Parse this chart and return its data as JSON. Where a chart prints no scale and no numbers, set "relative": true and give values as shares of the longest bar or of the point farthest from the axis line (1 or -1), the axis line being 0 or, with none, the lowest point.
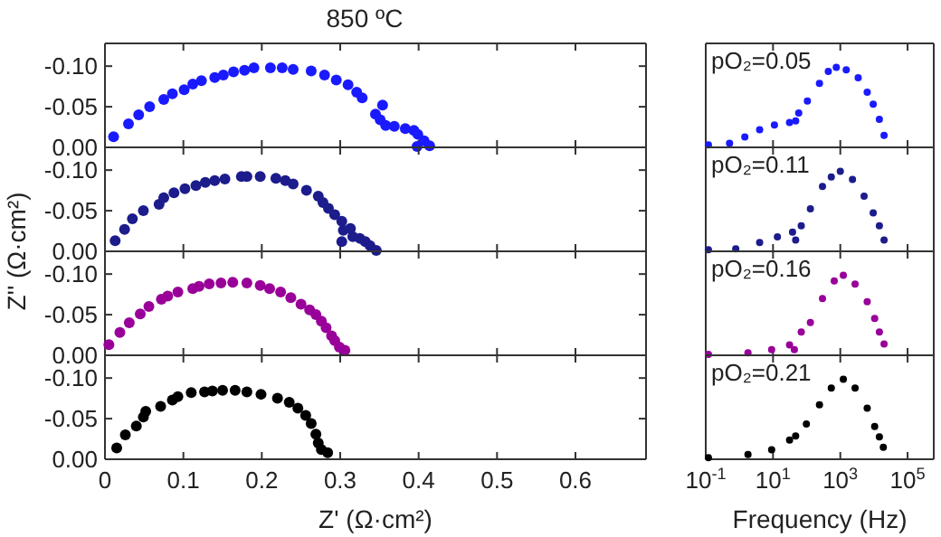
{
  "chart_data": [
    {
      "type": "scatter",
      "title": "850 ºC",
      "marker": "circle",
      "color": "#1a1aff",
      "xlim": [
        0,
        0.69
      ],
      "ylim": [
        0,
        -0.128
      ],
      "xticks": [
        0,
        0.1,
        0.2,
        0.3,
        0.4,
        0.5,
        0.6
      ],
      "yticks": [
        {
          "value": 0,
          "label": "0.00"
        },
        {
          "value": -0.05,
          "label": "-0.05"
        },
        {
          "value": -0.1,
          "label": "-0.10"
        }
      ],
      "tick_labels": "y",
      "x": [
        0.011,
        0.03,
        0.043,
        0.057,
        0.075,
        0.086,
        0.101,
        0.112,
        0.123,
        0.14,
        0.151,
        0.164,
        0.178,
        0.19,
        0.211,
        0.226,
        0.24,
        0.263,
        0.28,
        0.295,
        0.31,
        0.321,
        0.328,
        0.345,
        0.354,
        0.351,
        0.358,
        0.369,
        0.383,
        0.394,
        0.399,
        0.407,
        0.414,
        0.398
      ],
      "values": [
        -0.013,
        -0.029,
        -0.04,
        -0.05,
        -0.059,
        -0.066,
        -0.071,
        -0.078,
        -0.082,
        -0.086,
        -0.089,
        -0.093,
        -0.095,
        -0.098,
        -0.098,
        -0.098,
        -0.096,
        -0.094,
        -0.089,
        -0.083,
        -0.077,
        -0.068,
        -0.061,
        -0.041,
        -0.052,
        -0.034,
        -0.027,
        -0.026,
        -0.023,
        -0.021,
        -0.016,
        -0.008,
        -0.002,
        -0.001
      ]
    },
    {
      "type": "scatter",
      "marker": "circle",
      "color": "#1c1c8c",
      "xlim": [
        0,
        0.69
      ],
      "ylim": [
        0,
        -0.128
      ],
      "xticks": [
        0,
        0.1,
        0.2,
        0.3,
        0.4,
        0.5,
        0.6
      ],
      "yticks": [
        {
          "value": 0,
          "label": "0.00"
        },
        {
          "value": -0.05,
          "label": "-0.05"
        },
        {
          "value": -0.1,
          "label": "-0.10"
        }
      ],
      "tick_labels": "y",
      "x": [
        0.013,
        0.025,
        0.035,
        0.049,
        0.069,
        0.075,
        0.088,
        0.102,
        0.116,
        0.128,
        0.14,
        0.153,
        0.174,
        0.181,
        0.198,
        0.218,
        0.23,
        0.24,
        0.257,
        0.272,
        0.278,
        0.285,
        0.293,
        0.302,
        0.304,
        0.313,
        0.316,
        0.325,
        0.332,
        0.338,
        0.346,
        0.302
      ],
      "values": [
        -0.013,
        -0.027,
        -0.04,
        -0.05,
        -0.058,
        -0.066,
        -0.072,
        -0.077,
        -0.081,
        -0.085,
        -0.087,
        -0.089,
        -0.092,
        -0.092,
        -0.092,
        -0.09,
        -0.087,
        -0.083,
        -0.075,
        -0.068,
        -0.06,
        -0.053,
        -0.045,
        -0.037,
        -0.026,
        -0.028,
        -0.018,
        -0.016,
        -0.012,
        -0.007,
        -0.001,
        -0.012
      ]
    },
    {
      "type": "scatter",
      "ylabel": "Z'' (Ω·cm²)",
      "marker": "circle",
      "color": "#990099",
      "xlim": [
        0,
        0.69
      ],
      "ylim": [
        0,
        -0.128
      ],
      "xticks": [
        0,
        0.1,
        0.2,
        0.3,
        0.4,
        0.5,
        0.6
      ],
      "yticks": [
        {
          "value": 0,
          "label": "0.00"
        },
        {
          "value": -0.05,
          "label": "-0.05"
        },
        {
          "value": -0.1,
          "label": "-0.10"
        }
      ],
      "tick_labels": "y",
      "x": [
        0.005,
        0.019,
        0.031,
        0.045,
        0.056,
        0.072,
        0.08,
        0.093,
        0.112,
        0.12,
        0.133,
        0.148,
        0.163,
        0.181,
        0.198,
        0.21,
        0.224,
        0.237,
        0.25,
        0.261,
        0.269,
        0.276,
        0.282,
        0.289,
        0.293,
        0.299,
        0.306
      ],
      "values": [
        -0.013,
        -0.028,
        -0.04,
        -0.051,
        -0.06,
        -0.069,
        -0.073,
        -0.078,
        -0.082,
        -0.085,
        -0.088,
        -0.089,
        -0.09,
        -0.089,
        -0.086,
        -0.082,
        -0.078,
        -0.071,
        -0.063,
        -0.056,
        -0.05,
        -0.042,
        -0.034,
        -0.024,
        -0.018,
        -0.01,
        -0.006
      ]
    },
    {
      "type": "scatter",
      "xlabel": "Z' (Ω·cm²)",
      "marker": "circle",
      "color": "#000000",
      "xlim": [
        0,
        0.69
      ],
      "ylim": [
        0,
        -0.128
      ],
      "xticks": [
        0,
        0.1,
        0.2,
        0.3,
        0.4,
        0.5,
        0.6
      ],
      "yticks": [
        {
          "value": 0,
          "label": "0.00"
        },
        {
          "value": -0.05,
          "label": "-0.05"
        },
        {
          "value": -0.1,
          "label": "-0.10"
        }
      ],
      "x": [
        0.015,
        0.026,
        0.04,
        0.049,
        0.052,
        0.071,
        0.086,
        0.093,
        0.11,
        0.127,
        0.137,
        0.15,
        0.166,
        0.181,
        0.199,
        0.22,
        0.235,
        0.246,
        0.256,
        0.263,
        0.269,
        0.272,
        0.276,
        0.284
      ],
      "values": [
        -0.014,
        -0.03,
        -0.041,
        -0.052,
        -0.059,
        -0.065,
        -0.073,
        -0.077,
        -0.082,
        -0.083,
        -0.084,
        -0.085,
        -0.085,
        -0.083,
        -0.08,
        -0.075,
        -0.07,
        -0.063,
        -0.054,
        -0.044,
        -0.031,
        -0.02,
        -0.012,
        -0.008
      ]
    },
    {
      "type": "scatter",
      "relative": true,
      "annotations": [
        "pO₂=0.05"
      ],
      "marker": "circle",
      "color": "#1a1aff",
      "log": "x",
      "xlim": [
        0.1,
        600000
      ],
      "xticks": [
        0.1,
        10,
        1000,
        100000
      ],
      "tick_labels": false,
      "x": [
        0.12,
        0.51,
        1.45,
        4.0,
        11,
        31,
        47,
        58,
        105,
        240,
        440,
        760,
        1500,
        3400,
        6300,
        9500,
        14500,
        20000
      ],
      "values": [
        0.03,
        0.05,
        0.13,
        0.22,
        0.28,
        0.31,
        0.33,
        0.43,
        0.58,
        0.8,
        0.95,
        1,
        0.97,
        0.87,
        0.69,
        0.54,
        0.35,
        0.15
      ]
    },
    {
      "type": "scatter",
      "relative": true,
      "annotations": [
        "pO₂=0.11"
      ],
      "marker": "circle",
      "color": "#1c1c8c",
      "log": "x",
      "xlim": [
        0.1,
        600000
      ],
      "xticks": [
        0.1,
        10,
        1000,
        100000
      ],
      "tick_labels": false,
      "x": [
        0.12,
        0.78,
        4.0,
        13.5,
        38,
        47,
        69,
        129,
        295,
        540,
        1000,
        2300,
        5100,
        9500,
        14500,
        20000
      ],
      "values": [
        0.02,
        0.03,
        0.11,
        0.18,
        0.24,
        0.14,
        0.32,
        0.53,
        0.81,
        0.93,
        1,
        0.9,
        0.69,
        0.48,
        0.32,
        0.14
      ]
    },
    {
      "type": "scatter",
      "relative": true,
      "annotations": [
        "pO₂=0.16"
      ],
      "marker": "circle",
      "color": "#990099",
      "log": "x",
      "xlim": [
        0.1,
        600000
      ],
      "xticks": [
        0.1,
        10,
        1000,
        100000
      ],
      "tick_labels": false,
      "x": [
        0.12,
        1.8,
        9.1,
        31,
        43,
        69,
        129,
        295,
        660,
        1230,
        2750,
        6300,
        10500,
        14500,
        20000
      ],
      "values": [
        0.01,
        0.03,
        0.07,
        0.13,
        0.07,
        0.29,
        0.41,
        0.71,
        0.93,
        1,
        0.89,
        0.67,
        0.46,
        0.29,
        0.14
      ]
    },
    {
      "type": "scatter",
      "relative": true,
      "annotations": [
        "pO₂=0.21"
      ],
      "xlabel": "Frequency (Hz)",
      "marker": "circle",
      "color": "#000000",
      "log": "x",
      "xlim": [
        0.1,
        600000
      ],
      "xticks": [
        {
          "value": 0.1,
          "label": "10$^{-1}$"
        },
        {
          "value": 10,
          "label": "10$^{1}$"
        },
        {
          "value": 1000,
          "label": "10$^{3}$"
        },
        {
          "value": 100000,
          "label": "10$^{5}$"
        }
      ],
      "tick_labels": "x",
      "x": [
        0.12,
        1.8,
        9.1,
        31,
        47,
        98,
        240,
        540,
        1230,
        2750,
        6300,
        10500,
        14500,
        19000
      ],
      "values": [
        0.02,
        0.06,
        0.12,
        0.24,
        0.29,
        0.44,
        0.68,
        0.89,
        1,
        0.89,
        0.64,
        0.41,
        0.28,
        0.15
      ]
    }
  ]
}
